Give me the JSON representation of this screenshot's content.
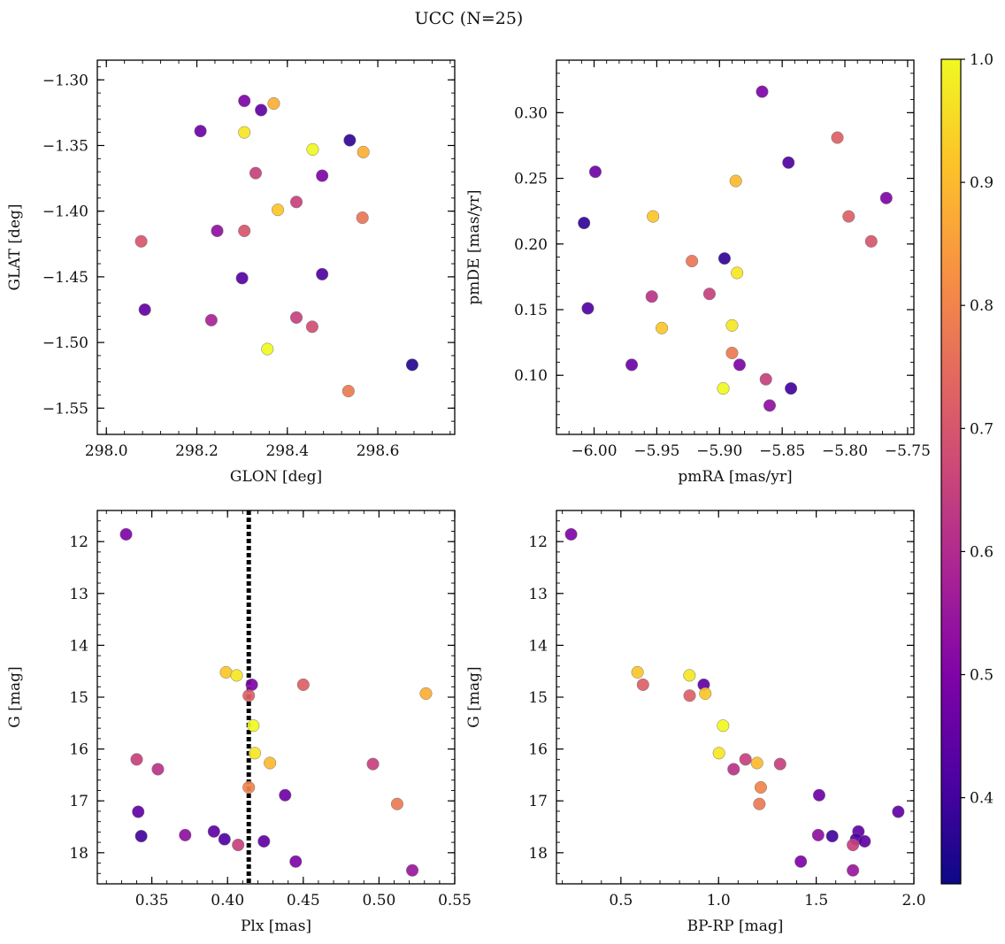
{
  "figure_title": "UCC (N=25)",
  "colorbar": {
    "range": [
      0.33,
      1.0
    ],
    "ticks": [
      0.4,
      0.5,
      0.6,
      0.7,
      0.8,
      0.9,
      1.0
    ],
    "tick_labels": [
      "0.4",
      "0.5",
      "0.6",
      "0.7",
      "0.8",
      "0.9",
      "1.0"
    ],
    "colormap": "plasma"
  },
  "chart_data": [
    {
      "type": "scatter",
      "title": "",
      "xlabel": "GLON [deg]",
      "ylabel": "GLAT [deg]",
      "xlim": [
        297.98,
        298.77
      ],
      "ylim": [
        -1.57,
        -1.285
      ],
      "y_inverted": false,
      "xticks": [
        298.0,
        298.2,
        298.4,
        298.6
      ],
      "xtick_labels": [
        "298.0",
        "298.2",
        "298.4",
        "298.6"
      ],
      "yticks": [
        -1.3,
        -1.35,
        -1.4,
        -1.45,
        -1.5,
        -1.55
      ],
      "ytick_labels": [
        "−1.30",
        "−1.35",
        "−1.40",
        "−1.45",
        "−1.50",
        "−1.55"
      ],
      "points": [
        {
          "x": 298.305,
          "y": -1.316,
          "p": 0.5
        },
        {
          "x": 298.342,
          "y": -1.323,
          "p": 0.45
        },
        {
          "x": 298.37,
          "y": -1.318,
          "p": 0.88
        },
        {
          "x": 298.208,
          "y": -1.339,
          "p": 0.47
        },
        {
          "x": 298.305,
          "y": -1.34,
          "p": 0.97
        },
        {
          "x": 298.538,
          "y": -1.346,
          "p": 0.38
        },
        {
          "x": 298.456,
          "y": -1.353,
          "p": 1.0
        },
        {
          "x": 298.568,
          "y": -1.355,
          "p": 0.88
        },
        {
          "x": 298.33,
          "y": -1.371,
          "p": 0.65
        },
        {
          "x": 298.477,
          "y": -1.373,
          "p": 0.5
        },
        {
          "x": 298.42,
          "y": -1.393,
          "p": 0.65
        },
        {
          "x": 298.379,
          "y": -1.399,
          "p": 0.92
        },
        {
          "x": 298.566,
          "y": -1.405,
          "p": 0.77
        },
        {
          "x": 298.245,
          "y": -1.415,
          "p": 0.53
        },
        {
          "x": 298.305,
          "y": -1.415,
          "p": 0.7
        },
        {
          "x": 298.077,
          "y": -1.423,
          "p": 0.7
        },
        {
          "x": 298.477,
          "y": -1.448,
          "p": 0.42
        },
        {
          "x": 298.3,
          "y": -1.451,
          "p": 0.43
        },
        {
          "x": 298.085,
          "y": -1.475,
          "p": 0.45
        },
        {
          "x": 298.42,
          "y": -1.481,
          "p": 0.65
        },
        {
          "x": 298.232,
          "y": -1.483,
          "p": 0.58
        },
        {
          "x": 298.455,
          "y": -1.488,
          "p": 0.68
        },
        {
          "x": 298.356,
          "y": -1.505,
          "p": 1.0
        },
        {
          "x": 298.676,
          "y": -1.517,
          "p": 0.36
        },
        {
          "x": 298.535,
          "y": -1.537,
          "p": 0.78
        }
      ]
    },
    {
      "type": "scatter",
      "title": "",
      "xlabel": "pmRA [mas/yr]",
      "ylabel": "pmDE [mas/yr]",
      "xlim": [
        -6.03,
        -5.745
      ],
      "ylim": [
        0.055,
        0.34
      ],
      "y_inverted": false,
      "xticks": [
        -6.0,
        -5.95,
        -5.9,
        -5.85,
        -5.8,
        -5.75
      ],
      "xtick_labels": [
        "−6.00",
        "−5.95",
        "−5.90",
        "−5.85",
        "−5.80",
        "−5.75"
      ],
      "yticks": [
        0.1,
        0.15,
        0.2,
        0.25,
        0.3
      ],
      "ytick_labels": [
        "0.10",
        "0.15",
        "0.20",
        "0.25",
        "0.30"
      ],
      "points": [
        {
          "x": -5.866,
          "y": 0.316,
          "p": 0.5
        },
        {
          "x": -5.806,
          "y": 0.281,
          "p": 0.72
        },
        {
          "x": -5.845,
          "y": 0.262,
          "p": 0.42
        },
        {
          "x": -5.999,
          "y": 0.255,
          "p": 0.47
        },
        {
          "x": -5.887,
          "y": 0.248,
          "p": 0.9
        },
        {
          "x": -5.767,
          "y": 0.235,
          "p": 0.5
        },
        {
          "x": -5.953,
          "y": 0.221,
          "p": 0.92
        },
        {
          "x": -5.797,
          "y": 0.221,
          "p": 0.72
        },
        {
          "x": -6.008,
          "y": 0.216,
          "p": 0.38
        },
        {
          "x": -5.779,
          "y": 0.202,
          "p": 0.7
        },
        {
          "x": -5.896,
          "y": 0.189,
          "p": 0.38
        },
        {
          "x": -5.922,
          "y": 0.187,
          "p": 0.77
        },
        {
          "x": -5.886,
          "y": 0.178,
          "p": 0.97
        },
        {
          "x": -5.908,
          "y": 0.162,
          "p": 0.65
        },
        {
          "x": -5.954,
          "y": 0.16,
          "p": 0.62
        },
        {
          "x": -6.005,
          "y": 0.151,
          "p": 0.42
        },
        {
          "x": -5.89,
          "y": 0.138,
          "p": 0.97
        },
        {
          "x": -5.946,
          "y": 0.136,
          "p": 0.92
        },
        {
          "x": -5.89,
          "y": 0.117,
          "p": 0.78
        },
        {
          "x": -5.97,
          "y": 0.108,
          "p": 0.47
        },
        {
          "x": -5.884,
          "y": 0.108,
          "p": 0.5
        },
        {
          "x": -5.863,
          "y": 0.097,
          "p": 0.65
        },
        {
          "x": -5.897,
          "y": 0.09,
          "p": 1.0
        },
        {
          "x": -5.843,
          "y": 0.09,
          "p": 0.4
        },
        {
          "x": -5.86,
          "y": 0.077,
          "p": 0.53
        }
      ]
    },
    {
      "type": "scatter",
      "title": "",
      "xlabel": "Plx [mas]",
      "ylabel": "G [mag]",
      "xlim": [
        0.314,
        0.55
      ],
      "ylim": [
        11.4,
        18.6
      ],
      "y_inverted": true,
      "reference_line": {
        "orientation": "vertical",
        "x": 0.414,
        "style": "dotted",
        "color": "#000000"
      },
      "xticks": [
        0.35,
        0.4,
        0.45,
        0.5,
        0.55
      ],
      "xtick_labels": [
        "0.35",
        "0.40",
        "0.45",
        "0.50",
        "0.55"
      ],
      "yticks": [
        12,
        13,
        14,
        15,
        16,
        17,
        18
      ],
      "ytick_labels": [
        "12",
        "13",
        "14",
        "15",
        "16",
        "17",
        "18"
      ],
      "points": [
        {
          "x": 0.333,
          "y": 11.86,
          "p": 0.5
        },
        {
          "x": 0.399,
          "y": 14.52,
          "p": 0.92
        },
        {
          "x": 0.406,
          "y": 14.58,
          "p": 0.97
        },
        {
          "x": 0.416,
          "y": 14.76,
          "p": 0.5
        },
        {
          "x": 0.45,
          "y": 14.76,
          "p": 0.72
        },
        {
          "x": 0.414,
          "y": 14.97,
          "p": 0.72
        },
        {
          "x": 0.531,
          "y": 14.93,
          "p": 0.88
        },
        {
          "x": 0.417,
          "y": 15.55,
          "p": 1.0
        },
        {
          "x": 0.418,
          "y": 16.08,
          "p": 0.97
        },
        {
          "x": 0.34,
          "y": 16.2,
          "p": 0.65
        },
        {
          "x": 0.428,
          "y": 16.27,
          "p": 0.9
        },
        {
          "x": 0.496,
          "y": 16.29,
          "p": 0.65
        },
        {
          "x": 0.354,
          "y": 16.39,
          "p": 0.62
        },
        {
          "x": 0.414,
          "y": 16.74,
          "p": 0.8
        },
        {
          "x": 0.438,
          "y": 16.89,
          "p": 0.47
        },
        {
          "x": 0.512,
          "y": 17.06,
          "p": 0.78
        },
        {
          "x": 0.341,
          "y": 17.21,
          "p": 0.45
        },
        {
          "x": 0.391,
          "y": 17.59,
          "p": 0.45
        },
        {
          "x": 0.372,
          "y": 17.66,
          "p": 0.53
        },
        {
          "x": 0.343,
          "y": 17.68,
          "p": 0.4
        },
        {
          "x": 0.398,
          "y": 17.74,
          "p": 0.42
        },
        {
          "x": 0.424,
          "y": 17.78,
          "p": 0.45
        },
        {
          "x": 0.407,
          "y": 17.85,
          "p": 0.65
        },
        {
          "x": 0.445,
          "y": 18.17,
          "p": 0.5
        },
        {
          "x": 0.522,
          "y": 18.34,
          "p": 0.55
        }
      ]
    },
    {
      "type": "scatter",
      "title": "",
      "xlabel": "BP-RP [mag]",
      "ylabel": "G [mag]",
      "xlim": [
        0.17,
        2.0
      ],
      "ylim": [
        11.4,
        18.6
      ],
      "y_inverted": true,
      "xticks": [
        0.5,
        1.0,
        1.5,
        2.0
      ],
      "xtick_labels": [
        "0.5",
        "1.0",
        "1.5",
        "2.0"
      ],
      "yticks": [
        12,
        13,
        14,
        15,
        16,
        17,
        18
      ],
      "ytick_labels": [
        "12",
        "13",
        "14",
        "15",
        "16",
        "17",
        "18"
      ],
      "points": [
        {
          "x": 0.245,
          "y": 11.86,
          "p": 0.5
        },
        {
          "x": 0.585,
          "y": 14.52,
          "p": 0.92
        },
        {
          "x": 0.613,
          "y": 14.76,
          "p": 0.72
        },
        {
          "x": 0.851,
          "y": 14.58,
          "p": 0.97
        },
        {
          "x": 0.924,
          "y": 14.76,
          "p": 0.45
        },
        {
          "x": 0.852,
          "y": 14.97,
          "p": 0.72
        },
        {
          "x": 0.932,
          "y": 14.93,
          "p": 0.92
        },
        {
          "x": 1.023,
          "y": 15.55,
          "p": 1.0
        },
        {
          "x": 1.002,
          "y": 16.08,
          "p": 0.97
        },
        {
          "x": 1.138,
          "y": 16.2,
          "p": 0.65
        },
        {
          "x": 1.197,
          "y": 16.27,
          "p": 0.9
        },
        {
          "x": 1.315,
          "y": 16.29,
          "p": 0.65
        },
        {
          "x": 1.077,
          "y": 16.39,
          "p": 0.62
        },
        {
          "x": 1.216,
          "y": 16.74,
          "p": 0.8
        },
        {
          "x": 1.515,
          "y": 16.89,
          "p": 0.47
        },
        {
          "x": 1.209,
          "y": 17.06,
          "p": 0.78
        },
        {
          "x": 1.92,
          "y": 17.21,
          "p": 0.45
        },
        {
          "x": 1.716,
          "y": 17.59,
          "p": 0.45
        },
        {
          "x": 1.51,
          "y": 17.66,
          "p": 0.53
        },
        {
          "x": 1.582,
          "y": 17.68,
          "p": 0.4
        },
        {
          "x": 1.704,
          "y": 17.74,
          "p": 0.42
        },
        {
          "x": 1.748,
          "y": 17.78,
          "p": 0.45
        },
        {
          "x": 1.688,
          "y": 17.85,
          "p": 0.65
        },
        {
          "x": 1.421,
          "y": 18.17,
          "p": 0.5
        },
        {
          "x": 1.688,
          "y": 18.34,
          "p": 0.55
        }
      ]
    }
  ]
}
